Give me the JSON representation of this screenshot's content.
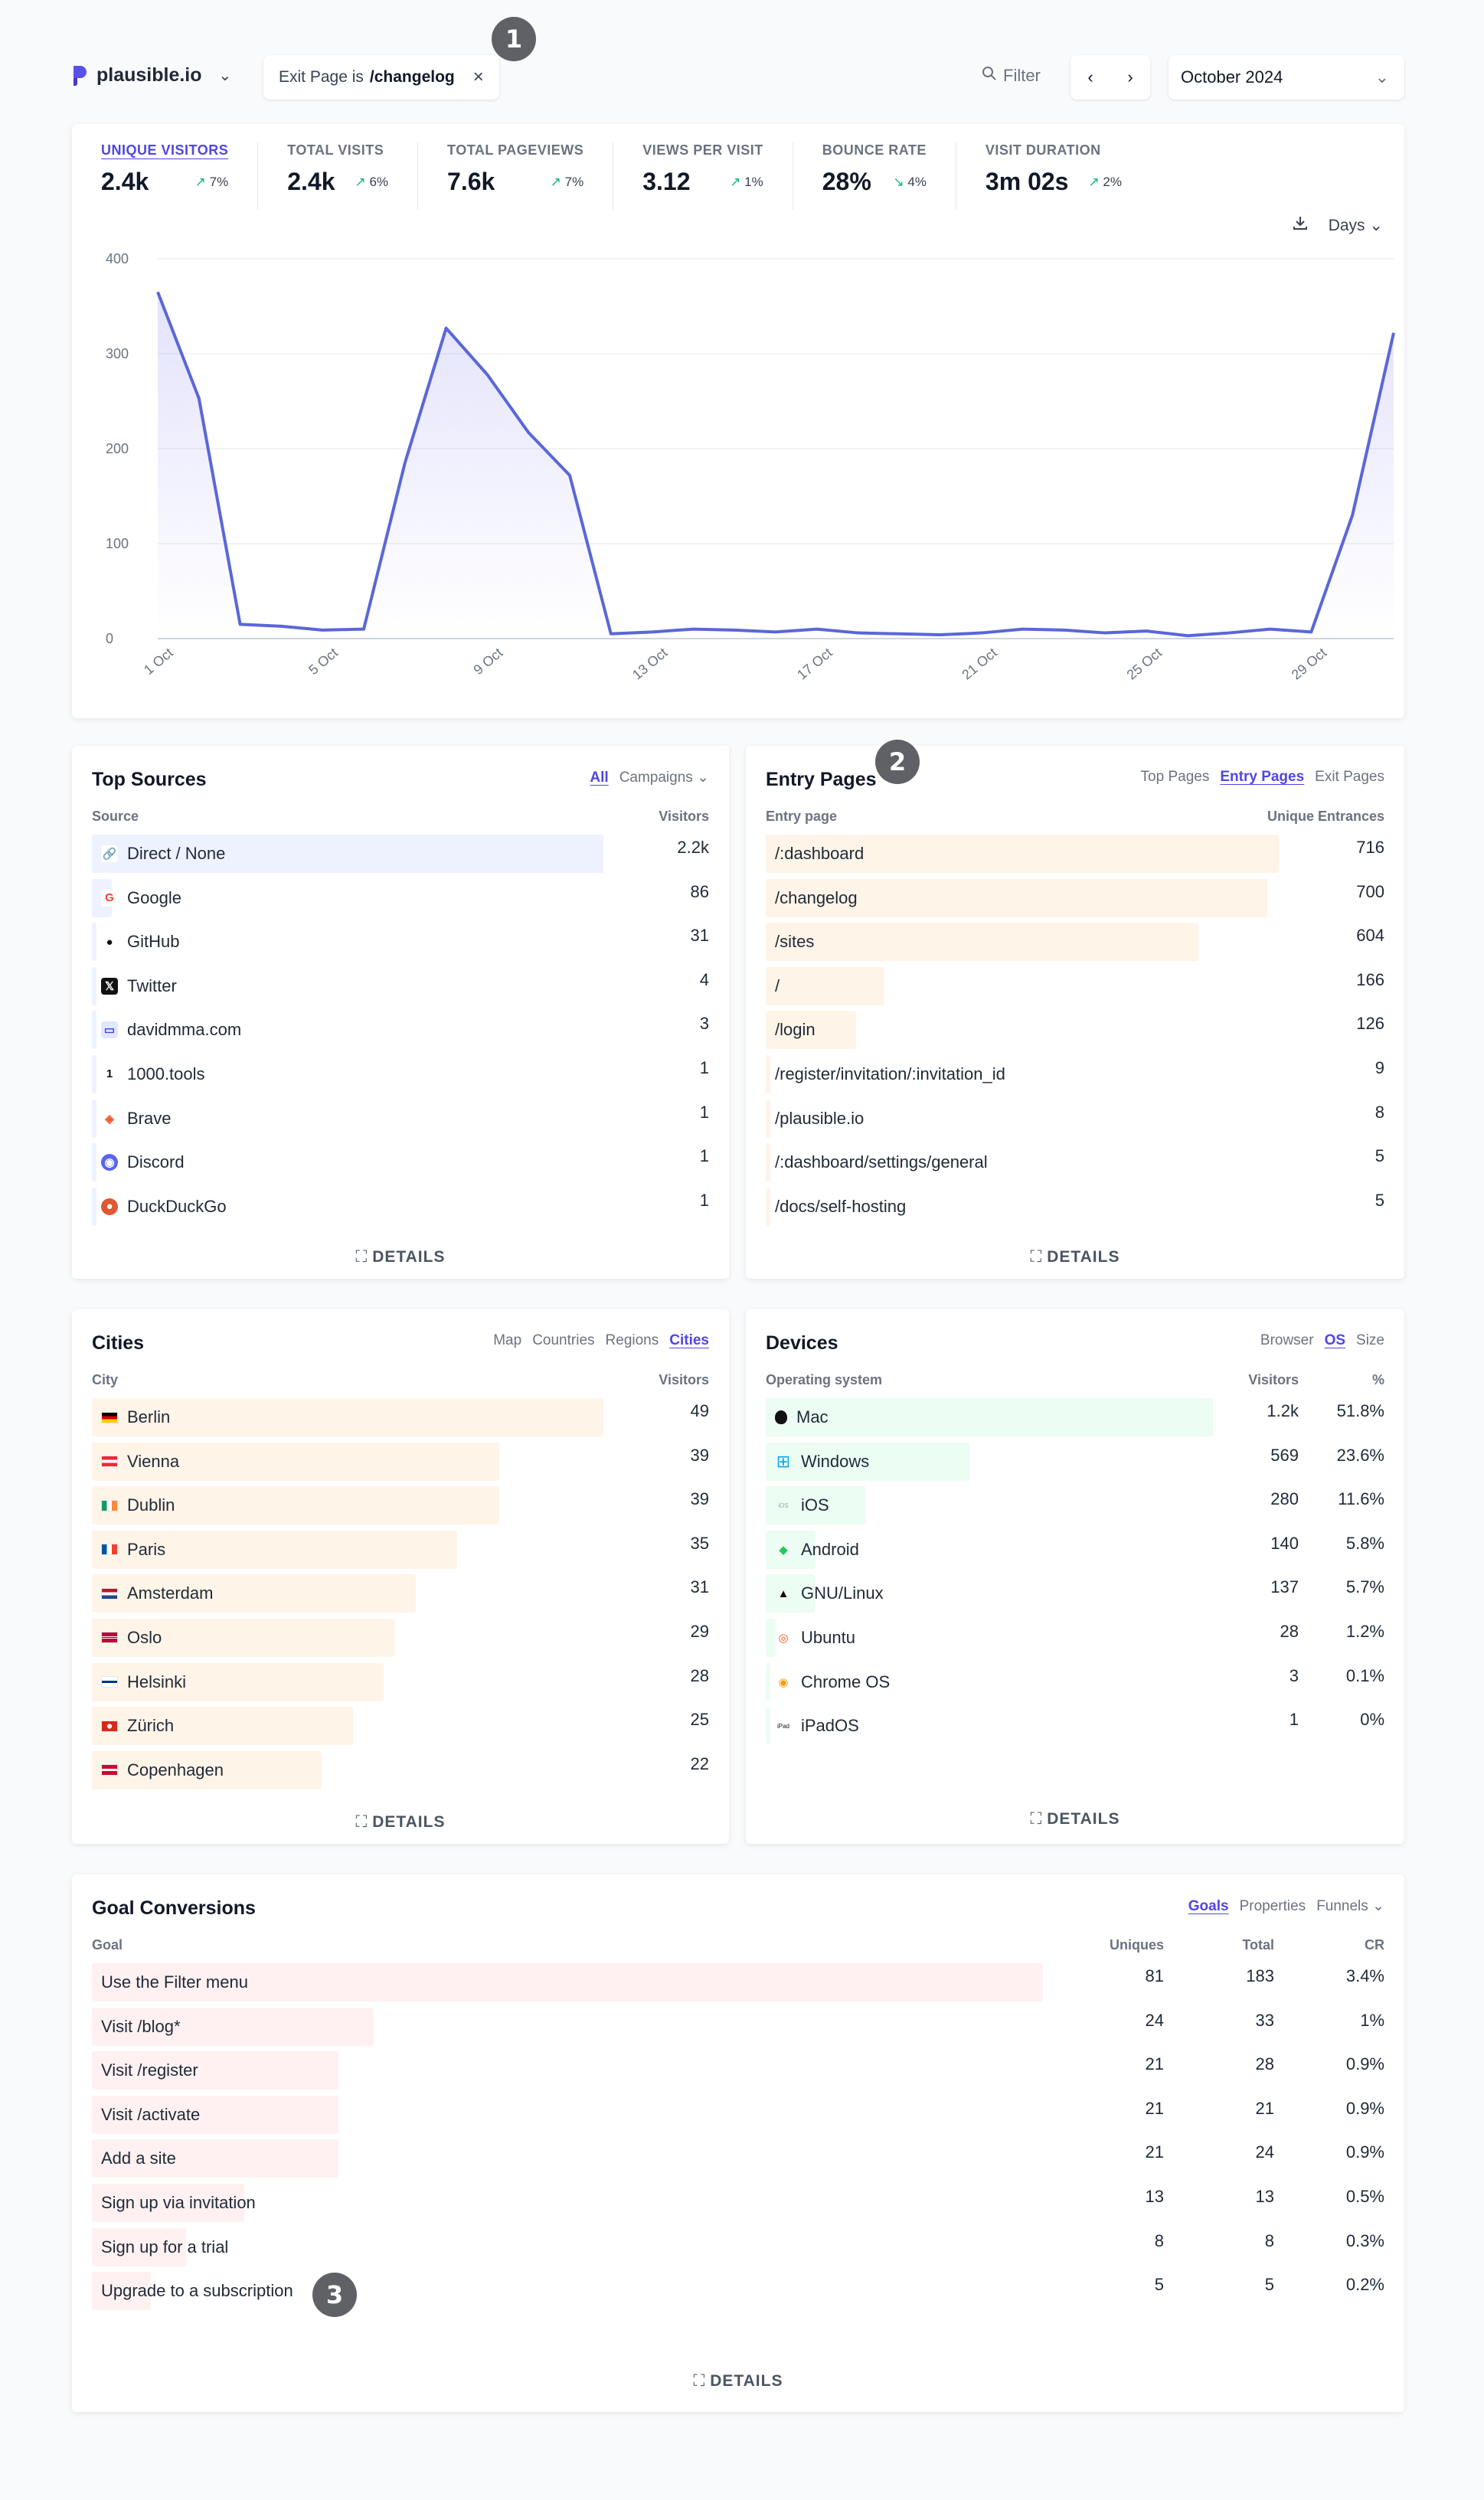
{
  "topbar": {
    "site": "plausible.io",
    "filter": {
      "prefix": "Exit Page is",
      "value": "/changelog"
    },
    "filter_label": "Filter",
    "period": "October 2024"
  },
  "badges": [
    "1",
    "2",
    "3"
  ],
  "stats": [
    {
      "label": "UNIQUE VISITORS",
      "value": "2.4k",
      "change": "7%",
      "dir": "up",
      "active": true
    },
    {
      "label": "TOTAL VISITS",
      "value": "2.4k",
      "change": "6%",
      "dir": "up"
    },
    {
      "label": "TOTAL PAGEVIEWS",
      "value": "7.6k",
      "change": "7%",
      "dir": "up"
    },
    {
      "label": "VIEWS PER VISIT",
      "value": "3.12",
      "change": "1%",
      "dir": "up"
    },
    {
      "label": "BOUNCE RATE",
      "value": "28%",
      "change": "4%",
      "dir": "down"
    },
    {
      "label": "VISIT DURATION",
      "value": "3m 02s",
      "change": "2%",
      "dir": "up"
    }
  ],
  "interval_label": "Days",
  "chart_data": {
    "type": "area",
    "ylim": [
      0,
      400
    ],
    "yticks": [
      0,
      100,
      200,
      300,
      400
    ],
    "xticks": [
      "1 Oct",
      "5 Oct",
      "9 Oct",
      "13 Oct",
      "17 Oct",
      "21 Oct",
      "25 Oct",
      "29 Oct"
    ],
    "x": [
      "1 Oct",
      "2 Oct",
      "3 Oct",
      "4 Oct",
      "5 Oct",
      "6 Oct",
      "7 Oct",
      "8 Oct",
      "9 Oct",
      "10 Oct",
      "11 Oct",
      "12 Oct",
      "13 Oct",
      "14 Oct",
      "15 Oct",
      "16 Oct",
      "17 Oct",
      "18 Oct",
      "19 Oct",
      "20 Oct",
      "21 Oct",
      "22 Oct",
      "23 Oct",
      "24 Oct",
      "25 Oct",
      "26 Oct",
      "27 Oct",
      "28 Oct",
      "29 Oct",
      "30 Oct",
      "31 Oct"
    ],
    "series": [
      {
        "values": [
          365,
          253,
          15,
          13,
          9,
          10,
          185,
          327,
          278,
          217,
          172,
          5,
          7,
          10,
          9,
          7,
          10,
          6,
          5,
          4,
          6,
          10,
          9,
          6,
          8,
          3,
          6,
          10,
          7,
          130,
          322
        ],
        "color": "#5a67d8"
      }
    ]
  },
  "sources": {
    "title": "Top Sources",
    "tabs": [
      "All",
      "Campaigns"
    ],
    "col_source": "Source",
    "col_visitors": "Visitors",
    "rows": [
      {
        "name": "Direct / None",
        "value": "2.2k",
        "pct": 1.0,
        "icon": "link-icon"
      },
      {
        "name": "Google",
        "value": "86",
        "pct": 0.039,
        "icon": "google-icon"
      },
      {
        "name": "GitHub",
        "value": "31",
        "pct": 0.014,
        "icon": "github-icon"
      },
      {
        "name": "Twitter",
        "value": "4",
        "pct": 0.002,
        "icon": "x-icon"
      },
      {
        "name": "davidmma.com",
        "value": "3",
        "pct": 0.001,
        "icon": "site-icon"
      },
      {
        "name": "1000.tools",
        "value": "1",
        "pct": 0.0005,
        "icon": "1000tools-icon"
      },
      {
        "name": "Brave",
        "value": "1",
        "pct": 0.0005,
        "icon": "brave-icon"
      },
      {
        "name": "Discord",
        "value": "1",
        "pct": 0.0005,
        "icon": "discord-icon"
      },
      {
        "name": "DuckDuckGo",
        "value": "1",
        "pct": 0.0005,
        "icon": "duckduckgo-icon"
      }
    ],
    "details": "DETAILS"
  },
  "entry": {
    "title": "Entry Pages",
    "tabs": [
      "Top Pages",
      "Entry Pages",
      "Exit Pages"
    ],
    "col_page": "Entry page",
    "col_value": "Unique Entrances",
    "rows": [
      {
        "name": "/:dashboard",
        "value": "716",
        "pct": 1.0
      },
      {
        "name": "/changelog",
        "value": "700",
        "pct": 0.977
      },
      {
        "name": "/sites",
        "value": "604",
        "pct": 0.843
      },
      {
        "name": "/",
        "value": "166",
        "pct": 0.232
      },
      {
        "name": "/login",
        "value": "126",
        "pct": 0.176
      },
      {
        "name": "/register/invitation/:invitation_id",
        "value": "9",
        "pct": 0.0126
      },
      {
        "name": "/plausible.io",
        "value": "8",
        "pct": 0.0112
      },
      {
        "name": "/:dashboard/settings/general",
        "value": "5",
        "pct": 0.007
      },
      {
        "name": "/docs/self-hosting",
        "value": "5",
        "pct": 0.007
      }
    ],
    "details": "DETAILS"
  },
  "cities": {
    "title": "Cities",
    "tabs": [
      "Map",
      "Countries",
      "Regions",
      "Cities"
    ],
    "col_city": "City",
    "col_visitors": "Visitors",
    "rows": [
      {
        "name": "Berlin",
        "value": "49",
        "pct": 1.0,
        "flag": "de"
      },
      {
        "name": "Vienna",
        "value": "39",
        "pct": 0.796,
        "flag": "at"
      },
      {
        "name": "Dublin",
        "value": "39",
        "pct": 0.796,
        "flag": "ie"
      },
      {
        "name": "Paris",
        "value": "35",
        "pct": 0.714,
        "flag": "fr"
      },
      {
        "name": "Amsterdam",
        "value": "31",
        "pct": 0.633,
        "flag": "nl"
      },
      {
        "name": "Oslo",
        "value": "29",
        "pct": 0.592,
        "flag": "no"
      },
      {
        "name": "Helsinki",
        "value": "28",
        "pct": 0.571,
        "flag": "fi"
      },
      {
        "name": "Zürich",
        "value": "25",
        "pct": 0.51,
        "flag": "ch"
      },
      {
        "name": "Copenhagen",
        "value": "22",
        "pct": 0.449,
        "flag": "dk"
      }
    ],
    "details": "DETAILS"
  },
  "devices": {
    "title": "Devices",
    "tabs": [
      "Browser",
      "OS",
      "Size"
    ],
    "col_os": "Operating system",
    "col_visitors": "Visitors",
    "col_pct": "%",
    "rows": [
      {
        "name": "Mac",
        "value": "1.2k",
        "percent": "51.8%",
        "pct": 1.0,
        "icon": "apple-icon"
      },
      {
        "name": "Windows",
        "value": "569",
        "percent": "23.6%",
        "pct": 0.456,
        "icon": "windows-icon"
      },
      {
        "name": "iOS",
        "value": "280",
        "percent": "11.6%",
        "pct": 0.224,
        "icon": "ios-icon"
      },
      {
        "name": "Android",
        "value": "140",
        "percent": "5.8%",
        "pct": 0.112,
        "icon": "android-icon"
      },
      {
        "name": "GNU/Linux",
        "value": "137",
        "percent": "5.7%",
        "pct": 0.11,
        "icon": "linux-icon"
      },
      {
        "name": "Ubuntu",
        "value": "28",
        "percent": "1.2%",
        "pct": 0.023,
        "icon": "ubuntu-icon"
      },
      {
        "name": "Chrome OS",
        "value": "3",
        "percent": "0.1%",
        "pct": 0.003,
        "icon": "chrome-icon"
      },
      {
        "name": "iPadOS",
        "value": "1",
        "percent": "0%",
        "pct": 0.001,
        "icon": "ipados-icon"
      }
    ],
    "details": "DETAILS"
  },
  "goals": {
    "title": "Goal Conversions",
    "tabs": [
      "Goals",
      "Properties",
      "Funnels"
    ],
    "col_goal": "Goal",
    "col_uniques": "Uniques",
    "col_total": "Total",
    "col_cr": "CR",
    "rows": [
      {
        "name": "Use the Filter menu",
        "uniques": "81",
        "total": "183",
        "cr": "3.4%",
        "pct": 1.0
      },
      {
        "name": "Visit /blog*",
        "uniques": "24",
        "total": "33",
        "cr": "1%",
        "pct": 0.296
      },
      {
        "name": "Visit /register",
        "uniques": "21",
        "total": "28",
        "cr": "0.9%",
        "pct": 0.259
      },
      {
        "name": "Visit /activate",
        "uniques": "21",
        "total": "21",
        "cr": "0.9%",
        "pct": 0.259
      },
      {
        "name": "Add a site",
        "uniques": "21",
        "total": "24",
        "cr": "0.9%",
        "pct": 0.259
      },
      {
        "name": "Sign up via invitation",
        "uniques": "13",
        "total": "13",
        "cr": "0.5%",
        "pct": 0.16
      },
      {
        "name": "Sign up for a trial",
        "uniques": "8",
        "total": "8",
        "cr": "0.3%",
        "pct": 0.099
      },
      {
        "name": "Upgrade to a subscription",
        "uniques": "5",
        "total": "5",
        "cr": "0.2%",
        "pct": 0.062
      }
    ],
    "details": "DETAILS"
  }
}
